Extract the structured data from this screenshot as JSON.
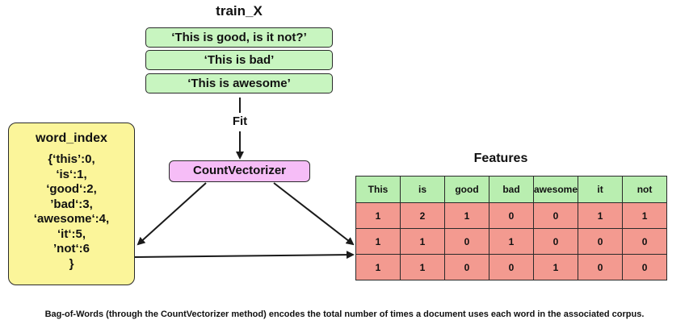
{
  "train_x": {
    "title": "train_X",
    "docs": [
      "‘This is good, is it not?’",
      "‘This is bad’",
      "‘This is awesome’"
    ]
  },
  "fit_label": "Fit",
  "vectorizer_label": "CountVectorizer",
  "word_index": {
    "title": "word_index",
    "lines": [
      "{‘this’:0,",
      "‘is‘:1,",
      "‘good‘:2,",
      "’bad‘:3,",
      "‘awesome‘:4,",
      "‘it‘:5,",
      "’not‘:6",
      "}"
    ]
  },
  "features": {
    "title": "Features",
    "headers": [
      "This",
      "is",
      "good",
      "bad",
      "awesome",
      "it",
      "not"
    ],
    "rows": [
      [
        "1",
        "2",
        "1",
        "0",
        "0",
        "1",
        "1"
      ],
      [
        "1",
        "1",
        "0",
        "1",
        "0",
        "0",
        "0"
      ],
      [
        "1",
        "1",
        "0",
        "0",
        "1",
        "0",
        "0"
      ]
    ]
  },
  "caption": "Bag-of-Words (through the  CountVectorizer method) encodes the total number of times a document uses each word in the associated corpus.",
  "colors": {
    "train_box": "#c8f5c0",
    "word_index_box": "#fbf59a",
    "vectorizer_box": "#f6bdf7",
    "table_header": "#b9eeb0",
    "table_data": "#f39a90"
  }
}
